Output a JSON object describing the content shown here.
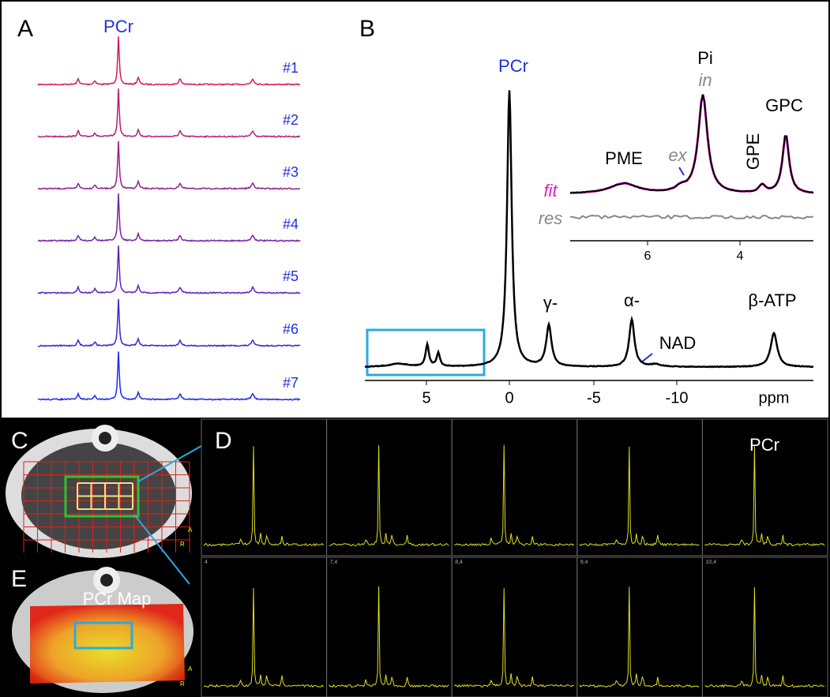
{
  "panels": {
    "a": {
      "label": "A",
      "peak": "PCr",
      "traces": [
        "#1",
        "#2",
        "#3",
        "#4",
        "#5",
        "#6",
        "#7"
      ]
    },
    "b": {
      "label": "B",
      "peaks": {
        "pcr": "PCr",
        "gamma": "γ-",
        "alpha": "α-",
        "nad": "NAD",
        "beta": "β-ATP"
      },
      "x_ticks": [
        "5",
        "0",
        "-5",
        "-10"
      ],
      "x_unit": "ppm",
      "inset": {
        "pme": "PME",
        "ex": "ex",
        "pi": "Pi",
        "in": "in",
        "gpe": "GPE",
        "gpc": "GPC",
        "fit": "fit",
        "res": "res",
        "x_ticks": [
          "6",
          "4"
        ]
      }
    },
    "c": {
      "label": "C",
      "orientation": [
        "A",
        "R"
      ]
    },
    "d": {
      "label": "D",
      "peak": "PCr",
      "cell_labels": [
        "4",
        "7,4",
        "8,4",
        "9,4",
        "10,4"
      ]
    },
    "e": {
      "label": "E",
      "map_label": "PCr Map",
      "orientation": [
        "A",
        "R"
      ]
    }
  }
}
